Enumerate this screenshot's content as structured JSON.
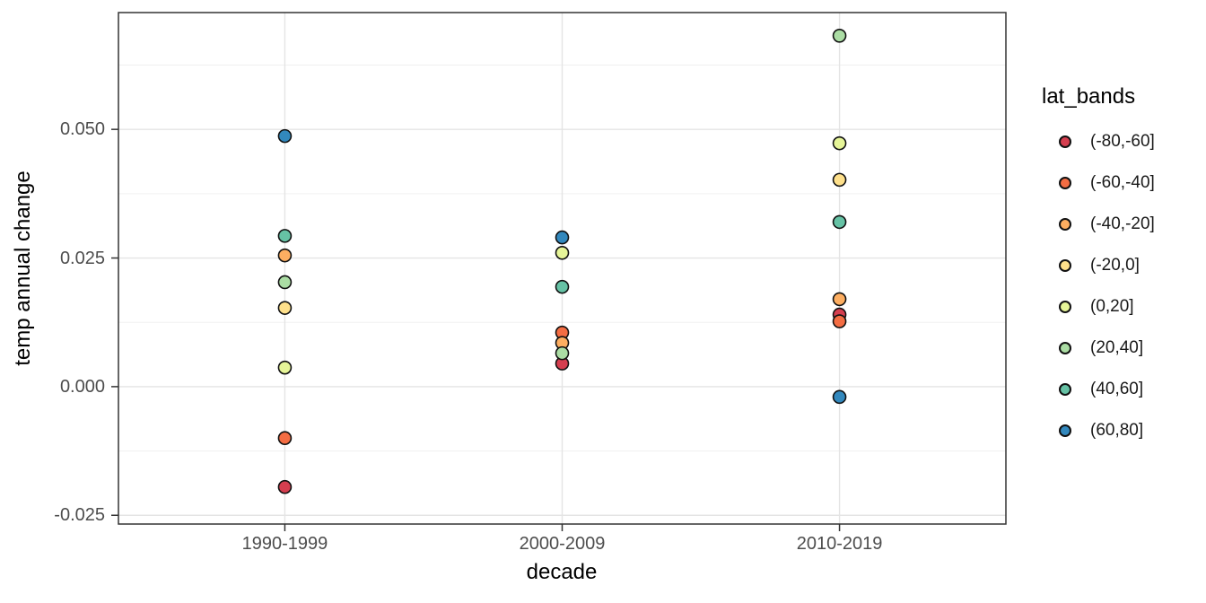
{
  "chart_data": {
    "type": "scatter",
    "title": "",
    "xlabel": "decade",
    "ylabel": "temp annual change",
    "categories": [
      "1990-1999",
      "2000-2009",
      "2010-2019"
    ],
    "y_ticks": [
      0.05,
      0.025,
      0.0,
      -0.025
    ],
    "y_tick_labels": [
      "0.050",
      "0.025",
      "0.000",
      "-0.025"
    ],
    "y_minor_ticks": [
      0.0625,
      0.0375,
      0.0125,
      -0.0125
    ],
    "ylim": [
      -0.0267,
      0.0727
    ],
    "grid": true,
    "legend_title": "lat_bands",
    "legend_position": "right",
    "point_style": {
      "radius": 7,
      "stroke": "#111111",
      "stroke_width": 1.6
    },
    "series": [
      {
        "name": "(-80,-60]",
        "color": "#d53e4f",
        "values": [
          -0.0195,
          0.0045,
          0.014
        ]
      },
      {
        "name": "(-60,-40]",
        "color": "#f46d43",
        "values": [
          -0.01,
          0.0105,
          0.0127
        ]
      },
      {
        "name": "(-40,-20]",
        "color": "#fdae61",
        "values": [
          0.0255,
          0.0085,
          0.017
        ]
      },
      {
        "name": "(-20,0]",
        "color": "#fee08b",
        "values": [
          0.0153,
          null,
          0.0402
        ]
      },
      {
        "name": "(0,20]",
        "color": "#e6f598",
        "values": [
          0.0037,
          0.026,
          0.0473
        ]
      },
      {
        "name": "(20,40]",
        "color": "#abdda4",
        "values": [
          0.0203,
          0.0065,
          0.0682
        ]
      },
      {
        "name": "(40,60]",
        "color": "#66c2a5",
        "values": [
          0.0293,
          0.0194,
          0.032
        ]
      },
      {
        "name": "(60,80]",
        "color": "#3288bd",
        "values": [
          0.0487,
          0.029,
          -0.002
        ]
      }
    ],
    "style_colors": {
      "panel_border": "#333333",
      "grid_major": "#e4e4e4",
      "grid_minor": "#f0f0f0",
      "tick_mark": "#333333",
      "tick_text": "#4d4d4d",
      "axis_title_text": "#000000"
    }
  }
}
